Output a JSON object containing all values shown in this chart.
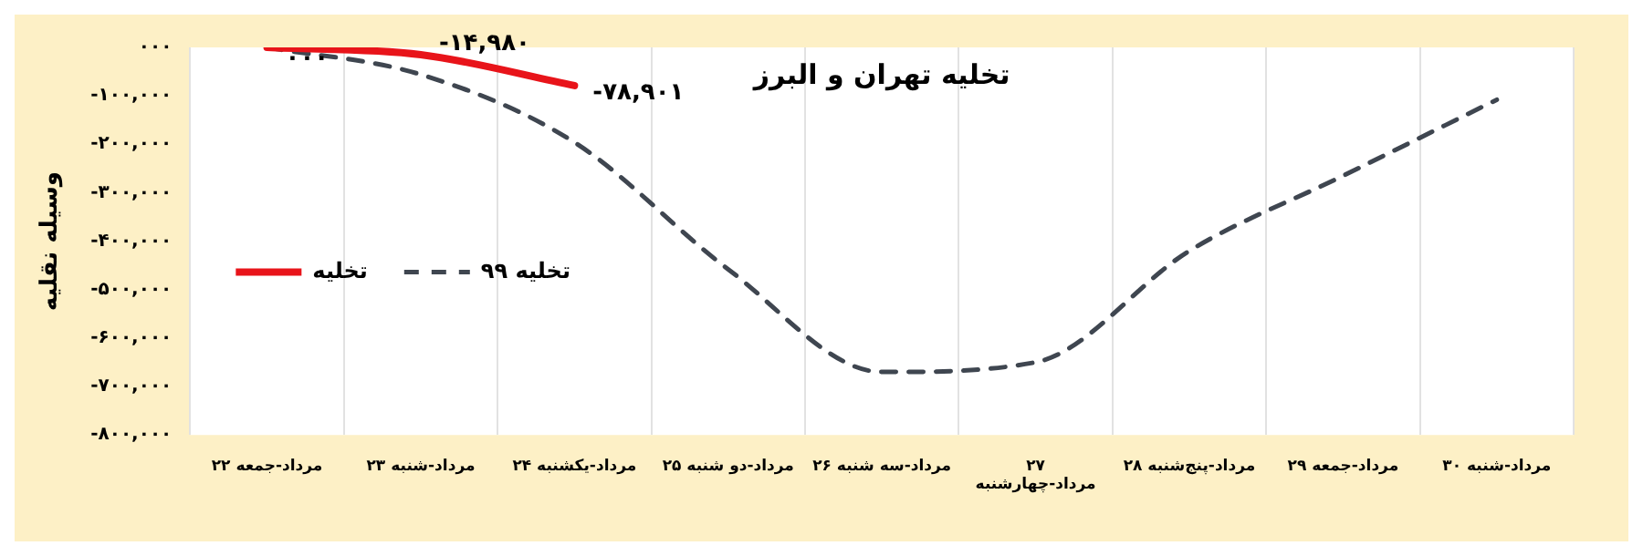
{
  "chart_data": {
    "type": "line",
    "title": "تخلیه تهران و البرز",
    "ylabel": "وسیله نقلیه",
    "categories": [
      "۲۲ مرداد-جمعه",
      "۲۳ مرداد-شنبه",
      "۲۴ مرداد-یکشنبه",
      "۲۵ مرداد-دو شنبه",
      "۲۶ مرداد-سه شنبه",
      "۲۷\nمرداد-چهارشنبه",
      "۲۸ مرداد-پنج‌شنبه",
      "۲۹ مرداد-جمعه",
      "۳۰ مرداد-شنبه"
    ],
    "series": [
      {
        "name": "تخلیه",
        "color": "#e8141a",
        "line_style": "solid",
        "values": [
          0,
          -14980,
          -78901,
          null,
          null,
          null,
          null,
          null,
          null
        ],
        "value_labels": [
          "۰۰۰",
          "-۱۴,۹۸۰",
          "-۷۸,۹۰۱",
          null,
          null,
          null,
          null,
          null,
          null
        ]
      },
      {
        "name": "تخلیه ۹۹",
        "color": "#3f4650",
        "line_style": "dashed",
        "values": [
          0,
          -56000,
          -196000,
          -458000,
          -670000,
          -650000,
          -420000,
          -265000,
          -108000
        ]
      }
    ],
    "ylim": [
      -800000,
      0
    ],
    "yticks": [
      {
        "value": 0,
        "label": "۰۰۰"
      },
      {
        "value": -100000,
        "label": "-۱۰۰,۰۰۰"
      },
      {
        "value": -200000,
        "label": "-۲۰۰,۰۰۰"
      },
      {
        "value": -300000,
        "label": "-۳۰۰,۰۰۰"
      },
      {
        "value": -400000,
        "label": "-۴۰۰,۰۰۰"
      },
      {
        "value": -500000,
        "label": "-۵۰۰,۰۰۰"
      },
      {
        "value": -600000,
        "label": "-۶۰۰,۰۰۰"
      },
      {
        "value": -700000,
        "label": "-۷۰۰,۰۰۰"
      },
      {
        "value": -800000,
        "label": "-۸۰۰,۰۰۰"
      }
    ],
    "grid": "x",
    "legend": "left",
    "marker": "none"
  }
}
